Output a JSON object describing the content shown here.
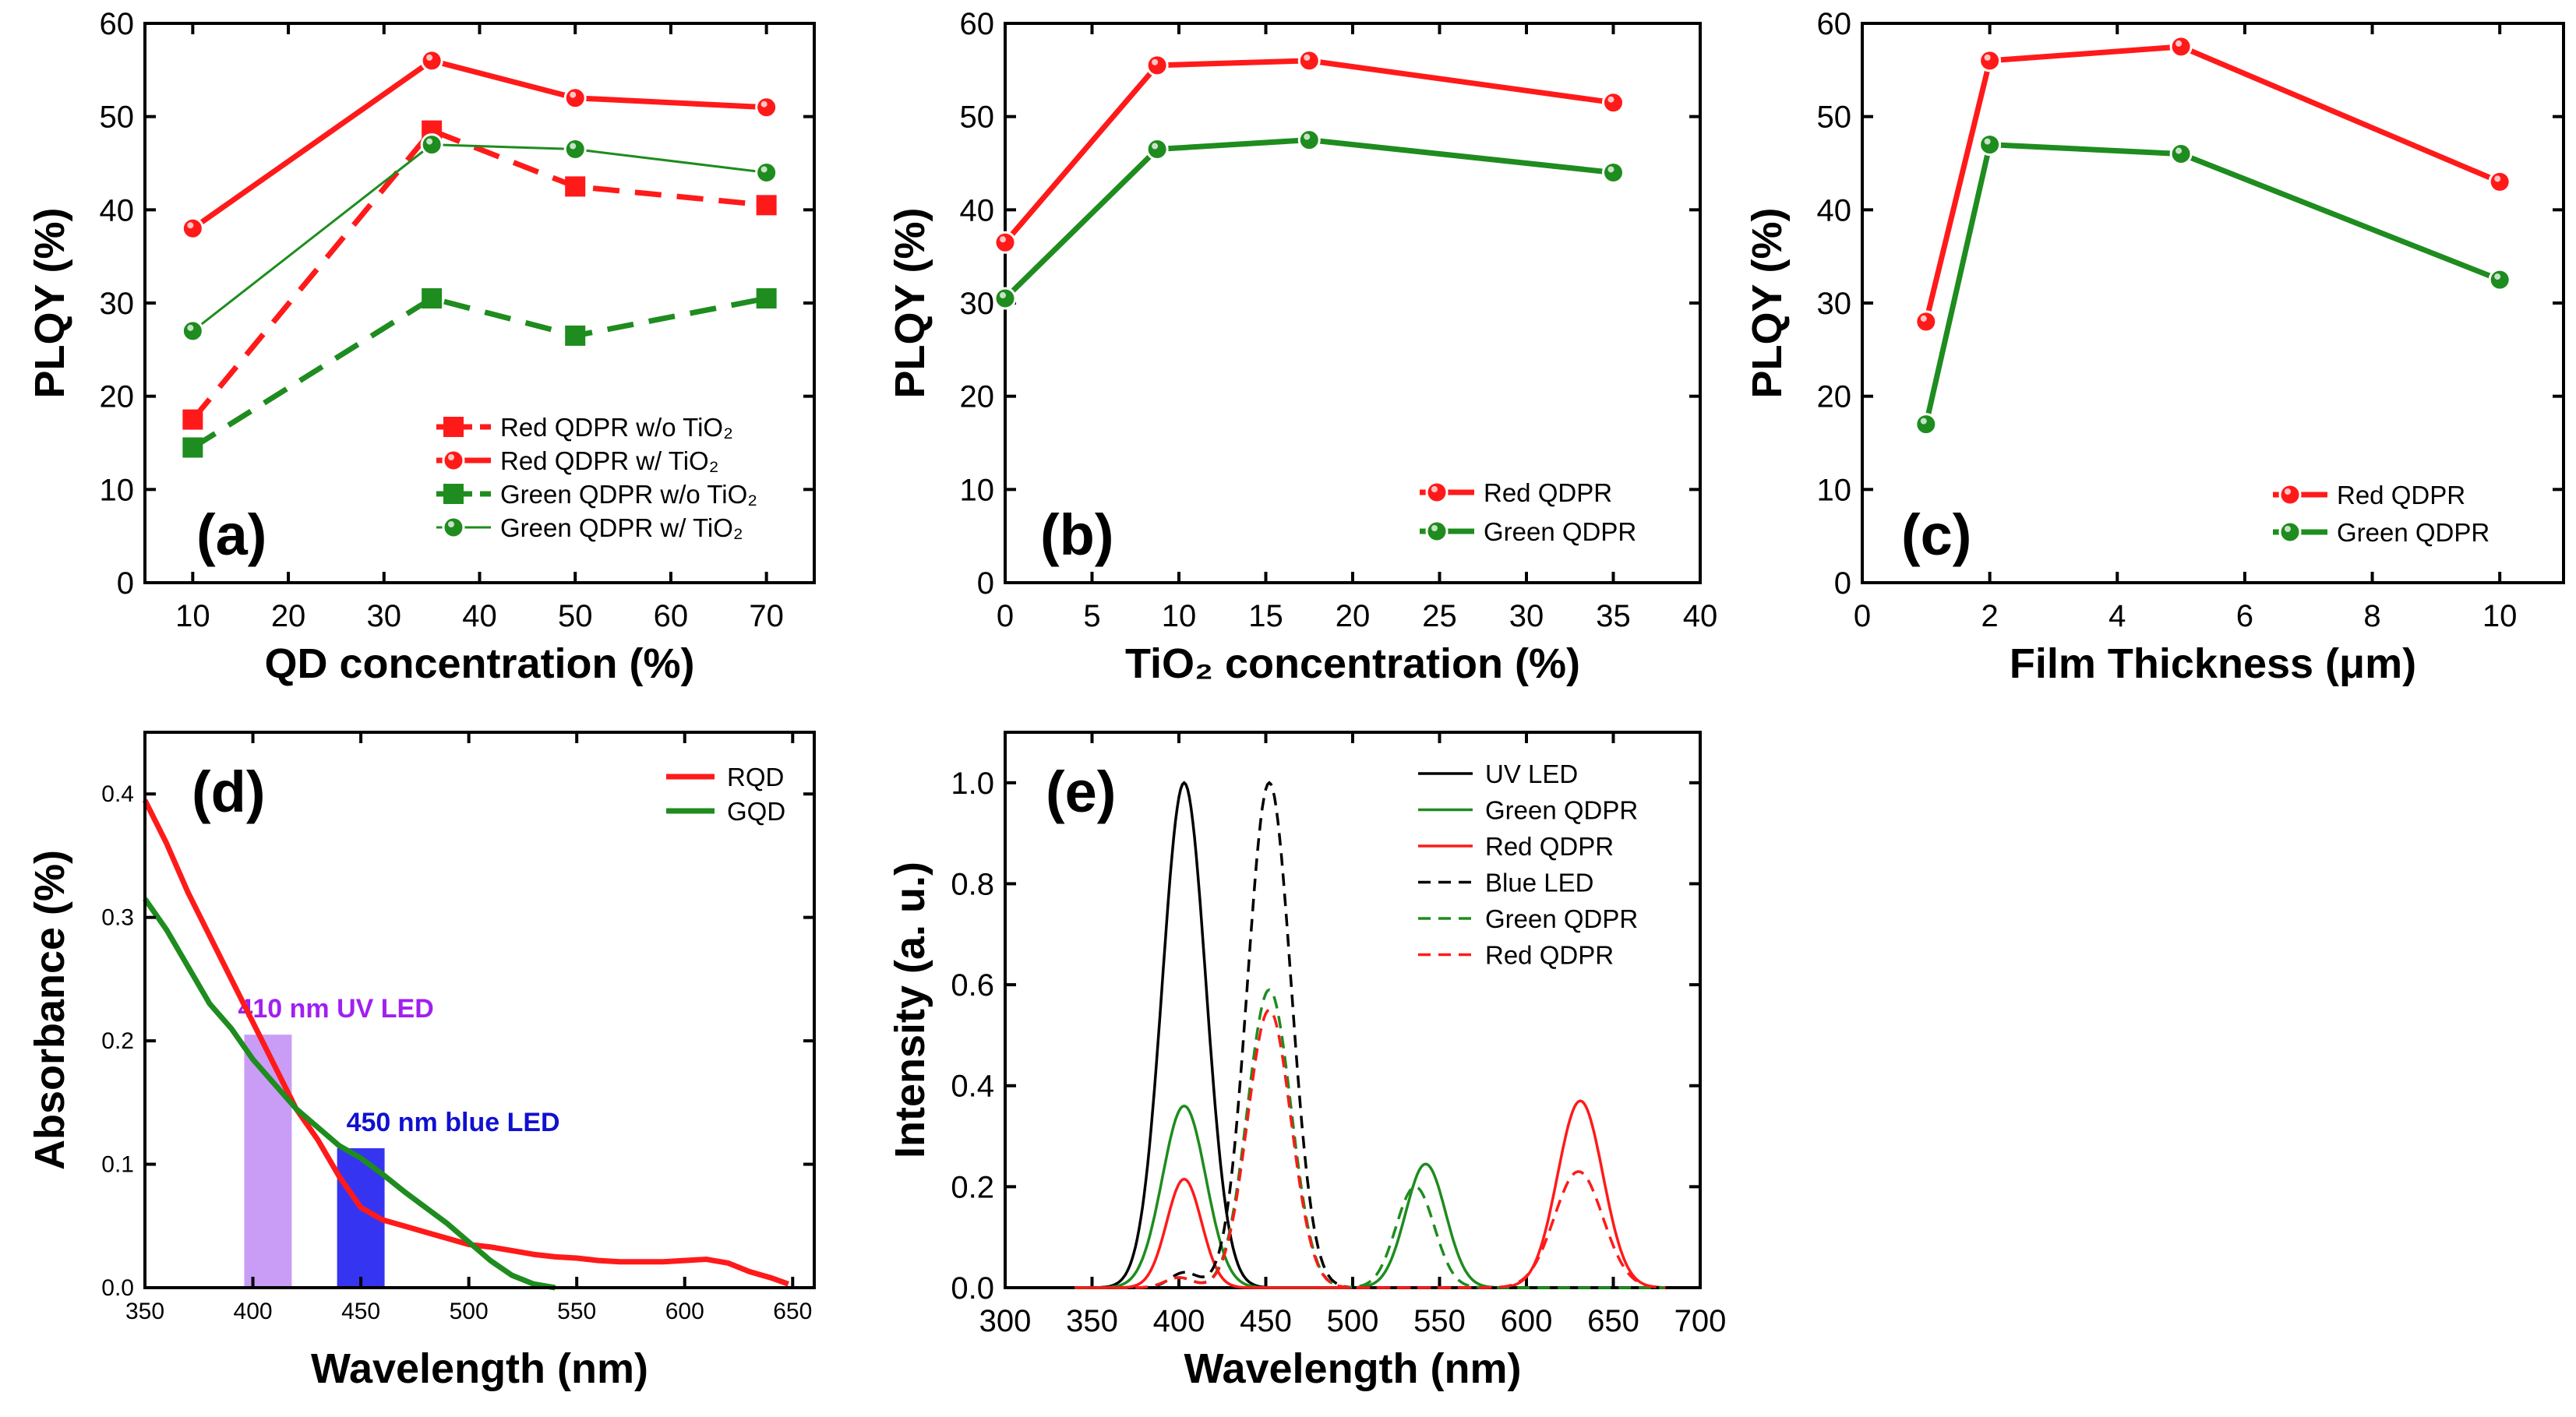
{
  "figure": {
    "colors": {
      "red": "#ff1a1a",
      "green": "#1e8c1e",
      "black": "#000000",
      "uv_bar": "#c08cf5",
      "blue_bar": "#2a2af0",
      "uv_text": "#a020f0",
      "blue_text": "#1010d0"
    }
  },
  "chart_data": [
    {
      "id": "a",
      "type": "line",
      "panel_label": "(a)",
      "xlabel": "QD concentration (%)",
      "ylabel": "PLQY (%)",
      "xlim": [
        5,
        75
      ],
      "ylim": [
        0,
        60
      ],
      "xticks": [
        10,
        20,
        30,
        40,
        50,
        60,
        70
      ],
      "yticks": [
        0,
        10,
        20,
        30,
        40,
        50,
        60
      ],
      "legend_position": "bottom-right",
      "series": [
        {
          "name": "Red QDPR w/o TiO₂",
          "color": "#ff1a1a",
          "dash": true,
          "marker": "square",
          "x": [
            10,
            35,
            50,
            70
          ],
          "y": [
            17.5,
            48.5,
            42.5,
            40.5
          ]
        },
        {
          "name": "Red QDPR w/ TiO₂",
          "color": "#ff1a1a",
          "dash": false,
          "marker": "circle",
          "x": [
            10,
            35,
            50,
            70
          ],
          "y": [
            38,
            56,
            52,
            51
          ]
        },
        {
          "name": "Green QDPR w/o TiO₂",
          "color": "#1e8c1e",
          "dash": true,
          "marker": "square",
          "x": [
            10,
            35,
            50,
            70
          ],
          "y": [
            14.5,
            30.5,
            26.5,
            30.5
          ]
        },
        {
          "name": "Green QDPR w/ TiO₂",
          "color": "#1e8c1e",
          "dash": false,
          "marker": "circle",
          "thin": true,
          "x": [
            10,
            35,
            50,
            70
          ],
          "y": [
            27,
            47,
            46.5,
            44
          ]
        }
      ]
    },
    {
      "id": "b",
      "type": "line",
      "panel_label": "(b)",
      "xlabel": "TiO₂ concentration (%)",
      "ylabel": "PLQY (%)",
      "xlim": [
        0,
        40
      ],
      "ylim": [
        0,
        60
      ],
      "xticks": [
        0,
        5,
        10,
        15,
        20,
        25,
        30,
        35,
        40
      ],
      "yticks": [
        0,
        10,
        20,
        30,
        40,
        50,
        60
      ],
      "legend_position": "bottom-right",
      "series": [
        {
          "name": "Red QDPR",
          "color": "#ff1a1a",
          "dash": false,
          "marker": "circle",
          "x": [
            0,
            8.75,
            17.5,
            35
          ],
          "y": [
            36.5,
            55.5,
            56,
            51.5
          ]
        },
        {
          "name": "Green QDPR",
          "color": "#1e8c1e",
          "dash": false,
          "marker": "circle",
          "x": [
            0,
            8.75,
            17.5,
            35
          ],
          "y": [
            30.5,
            46.5,
            47.5,
            44
          ]
        }
      ]
    },
    {
      "id": "c",
      "type": "line",
      "panel_label": "(c)",
      "xlabel": "Film  Thickness (μm)",
      "ylabel": "PLQY (%)",
      "xlim": [
        0,
        11
      ],
      "ylim": [
        0,
        60
      ],
      "xticks": [
        0,
        2,
        4,
        6,
        8,
        10
      ],
      "yticks": [
        0,
        10,
        20,
        30,
        40,
        50,
        60
      ],
      "legend_position": "bottom-right",
      "series": [
        {
          "name": "Red QDPR",
          "color": "#ff1a1a",
          "dash": false,
          "marker": "circle",
          "x": [
            1,
            2,
            5,
            10
          ],
          "y": [
            28,
            56,
            57.5,
            43
          ]
        },
        {
          "name": "Green QDPR",
          "color": "#1e8c1e",
          "dash": false,
          "marker": "circle",
          "x": [
            1,
            2,
            5,
            10
          ],
          "y": [
            17,
            47,
            46,
            32.5
          ]
        }
      ]
    },
    {
      "id": "d",
      "type": "line",
      "panel_label": "(d)",
      "xlabel": "Wavelength (nm)",
      "ylabel": "Absorbance (%)",
      "xlim": [
        350,
        660
      ],
      "ylim": [
        0,
        0.45
      ],
      "xticks": [
        350,
        400,
        450,
        500,
        550,
        600,
        650
      ],
      "yticks": [
        0.0,
        0.1,
        0.2,
        0.3,
        0.4
      ],
      "ytick_labels": [
        "0.0",
        "0.1",
        "0.2",
        "0.3",
        "0.4"
      ],
      "legend_position": "top-right",
      "highlight_bars": [
        {
          "label": "410 nm UV LED",
          "x0": 396,
          "x1": 418,
          "height": 0.205,
          "color": "#c08cf5",
          "text_color": "#a020f0"
        },
        {
          "label": "450 nm blue LED",
          "x0": 439,
          "x1": 461,
          "height": 0.113,
          "color": "#2a2af0",
          "text_color": "#1010d0"
        }
      ],
      "series": [
        {
          "name": "RQD",
          "color": "#ff1a1a",
          "x": [
            350,
            360,
            370,
            380,
            390,
            400,
            410,
            420,
            430,
            440,
            450,
            460,
            470,
            480,
            490,
            500,
            510,
            520,
            530,
            540,
            550,
            560,
            570,
            580,
            590,
            600,
            610,
            620,
            630,
            640,
            648
          ],
          "y": [
            0.395,
            0.36,
            0.32,
            0.285,
            0.25,
            0.215,
            0.18,
            0.145,
            0.12,
            0.09,
            0.065,
            0.055,
            0.05,
            0.045,
            0.04,
            0.035,
            0.033,
            0.03,
            0.027,
            0.025,
            0.024,
            0.022,
            0.021,
            0.021,
            0.021,
            0.022,
            0.023,
            0.02,
            0.013,
            0.008,
            0.003
          ]
        },
        {
          "name": "GQD",
          "color": "#1e8c1e",
          "x": [
            350,
            360,
            370,
            380,
            390,
            400,
            410,
            420,
            430,
            440,
            450,
            460,
            470,
            480,
            490,
            500,
            510,
            520,
            530,
            540
          ],
          "y": [
            0.315,
            0.29,
            0.26,
            0.23,
            0.21,
            0.185,
            0.165,
            0.145,
            0.13,
            0.115,
            0.105,
            0.092,
            0.078,
            0.065,
            0.052,
            0.037,
            0.022,
            0.01,
            0.003,
            0.0
          ]
        }
      ]
    },
    {
      "id": "e",
      "type": "line",
      "panel_label": "(e)",
      "xlabel": "Wavelength (nm)",
      "ylabel": "Intensity (a. u.)",
      "xlim": [
        300,
        700
      ],
      "ylim": [
        0,
        1.1
      ],
      "xticks": [
        300,
        350,
        400,
        450,
        500,
        550,
        600,
        650,
        700
      ],
      "yticks": [
        0.0,
        0.2,
        0.4,
        0.6,
        0.8,
        1.0
      ],
      "ytick_labels": [
        "0.0",
        "0.2",
        "0.4",
        "0.6",
        "0.8",
        "1.0"
      ],
      "legend_position": "top-right",
      "series": [
        {
          "name": "UV LED",
          "color": "#000000",
          "dash": false,
          "peaks": [
            [
              403,
              1.0,
              12.5
            ]
          ]
        },
        {
          "name": "Green QDPR",
          "color": "#1e8c1e",
          "dash": false,
          "peaks": [
            [
              403,
              0.36,
              12.5
            ],
            [
              542,
              0.245,
              11.5
            ]
          ]
        },
        {
          "name": "Red QDPR",
          "color": "#ff1a1a",
          "dash": false,
          "peaks": [
            [
              403,
              0.215,
              10
            ],
            [
              631,
              0.37,
              13
            ]
          ]
        },
        {
          "name": "Blue LED",
          "color": "#000000",
          "dash": true,
          "peaks": [
            [
              452,
              1.0,
              12.5
            ],
            [
              403,
              0.03,
              8
            ]
          ]
        },
        {
          "name": "Green QDPR",
          "color": "#1e8c1e",
          "dash": true,
          "peaks": [
            [
              452,
              0.59,
              12.5
            ],
            [
              536,
              0.2,
              11
            ],
            [
              400,
              0.02,
              8
            ]
          ]
        },
        {
          "name": "Red QDPR",
          "color": "#ff1a1a",
          "dash": true,
          "peaks": [
            [
              452,
              0.55,
              12.5
            ],
            [
              630,
              0.23,
              14
            ],
            [
              400,
              0.02,
              8
            ]
          ]
        }
      ]
    }
  ]
}
